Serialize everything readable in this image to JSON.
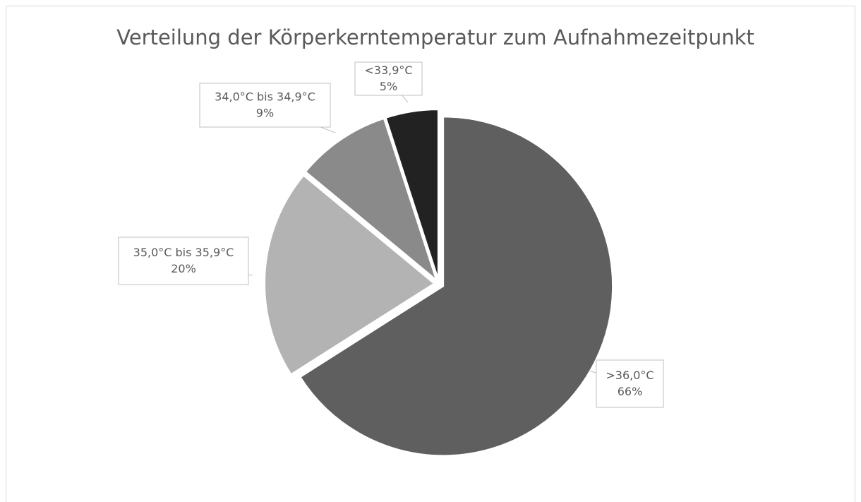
{
  "chart_data": {
    "type": "pie",
    "title": "Verteilung der Körperkerntemperatur zum Aufnahmezeitpunkt",
    "categories": [
      ">36,0°C",
      "35,0°C bis 35,9°C",
      "34,0°C bis 34,9°C",
      "<33,9°C"
    ],
    "values": [
      66,
      20,
      9,
      5
    ],
    "value_labels": [
      "66%",
      "20%",
      "9%",
      "5%"
    ],
    "colors": [
      "#5f5f5f",
      "#b3b3b3",
      "#8a8a8a",
      "#222222"
    ]
  }
}
